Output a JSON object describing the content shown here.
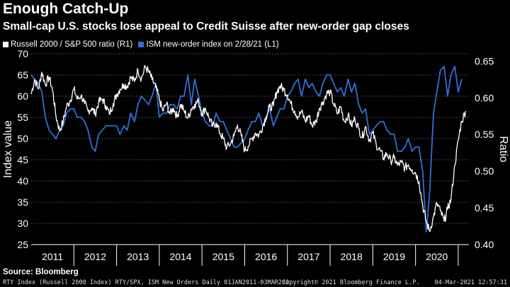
{
  "title": "Enough Catch-Up",
  "subtitle": "Small-cap U.S. stocks lose appeal to Credit Suisse after new-order gap closes",
  "source": "Source: Bloomberg",
  "footer": {
    "left": "RTY Index (Russell 2000 Index) RTY/SPX, ISM New Orders  Daily 01JAN2011-03MAR202",
    "center": "Copyright© 2021 Bloomberg Finance L.P.",
    "right": "04-Mar-2021 12:57:31"
  },
  "colors": {
    "russell": "#ffffff",
    "ism": "#2f6fd6",
    "grid": "#7a7a7a",
    "background": "#000000"
  },
  "chart_data": {
    "type": "line",
    "x_categories": [
      "2011",
      "2012",
      "2013",
      "2014",
      "2015",
      "2016",
      "2017",
      "2018",
      "2019",
      "2020"
    ],
    "left_axis": {
      "label": "Index value",
      "range": [
        25,
        70
      ],
      "ticks": [
        25,
        30,
        35,
        40,
        45,
        50,
        55,
        60,
        65,
        70
      ]
    },
    "right_axis": {
      "label": "Ratio",
      "range": [
        0.4,
        0.66
      ],
      "ticks": [
        "0.40",
        "0.45",
        "0.50",
        "0.55",
        "0.60",
        "0.65"
      ]
    },
    "series": [
      {
        "name": "Russell 2000 / S&P 500 ratio (R1)",
        "axis": "right",
        "x": [
          2011.0,
          2011.08,
          2011.17,
          2011.25,
          2011.33,
          2011.42,
          2011.5,
          2011.58,
          2011.67,
          2011.75,
          2011.83,
          2011.92,
          2012.0,
          2012.08,
          2012.17,
          2012.25,
          2012.33,
          2012.42,
          2012.5,
          2012.58,
          2012.67,
          2012.75,
          2012.83,
          2012.92,
          2013.0,
          2013.08,
          2013.17,
          2013.25,
          2013.33,
          2013.42,
          2013.5,
          2013.58,
          2013.67,
          2013.75,
          2013.83,
          2013.92,
          2014.0,
          2014.08,
          2014.17,
          2014.25,
          2014.33,
          2014.42,
          2014.5,
          2014.58,
          2014.67,
          2014.75,
          2014.83,
          2014.92,
          2015.0,
          2015.08,
          2015.17,
          2015.25,
          2015.33,
          2015.42,
          2015.5,
          2015.58,
          2015.67,
          2015.75,
          2015.83,
          2015.92,
          2016.0,
          2016.08,
          2016.17,
          2016.25,
          2016.33,
          2016.42,
          2016.5,
          2016.58,
          2016.67,
          2016.75,
          2016.83,
          2016.92,
          2017.0,
          2017.08,
          2017.17,
          2017.25,
          2017.33,
          2017.42,
          2017.5,
          2017.58,
          2017.67,
          2017.75,
          2017.83,
          2017.92,
          2018.0,
          2018.08,
          2018.17,
          2018.25,
          2018.33,
          2018.42,
          2018.5,
          2018.58,
          2018.67,
          2018.75,
          2018.83,
          2018.92,
          2019.0,
          2019.08,
          2019.17,
          2019.25,
          2019.33,
          2019.42,
          2019.5,
          2019.58,
          2019.67,
          2019.75,
          2019.83,
          2019.92,
          2020.0,
          2020.08,
          2020.17,
          2020.25,
          2020.33,
          2020.42,
          2020.5,
          2020.58,
          2020.67,
          2020.75,
          2020.83,
          2020.92,
          2021.0,
          2021.08,
          2021.17
        ],
        "values": [
          0.605,
          0.625,
          0.612,
          0.635,
          0.618,
          0.628,
          0.611,
          0.575,
          0.555,
          0.568,
          0.588,
          0.597,
          0.612,
          0.598,
          0.603,
          0.592,
          0.582,
          0.586,
          0.578,
          0.594,
          0.598,
          0.589,
          0.578,
          0.592,
          0.604,
          0.612,
          0.618,
          0.616,
          0.628,
          0.622,
          0.638,
          0.626,
          0.642,
          0.636,
          0.625,
          0.614,
          0.598,
          0.582,
          0.592,
          0.578,
          0.586,
          0.574,
          0.591,
          0.582,
          0.572,
          0.585,
          0.591,
          0.595,
          0.578,
          0.586,
          0.572,
          0.561,
          0.566,
          0.552,
          0.544,
          0.532,
          0.538,
          0.548,
          0.563,
          0.548,
          0.528,
          0.534,
          0.544,
          0.552,
          0.549,
          0.561,
          0.574,
          0.587,
          0.589,
          0.608,
          0.616,
          0.611,
          0.604,
          0.592,
          0.582,
          0.574,
          0.581,
          0.568,
          0.576,
          0.562,
          0.568,
          0.586,
          0.594,
          0.606,
          0.608,
          0.592,
          0.578,
          0.588,
          0.568,
          0.576,
          0.562,
          0.572,
          0.558,
          0.546,
          0.561,
          0.542,
          0.552,
          0.536,
          0.528,
          0.518,
          0.524,
          0.514,
          0.518,
          0.508,
          0.512,
          0.504,
          0.509,
          0.502,
          0.498,
          0.486,
          0.452,
          0.432,
          0.418,
          0.438,
          0.456,
          0.446,
          0.432,
          0.448,
          0.462,
          0.508,
          0.542,
          0.568,
          0.582
        ]
      },
      {
        "name": "ISM new-order index on 2/28/21 (L1)",
        "axis": "left",
        "x": [
          2011.0,
          2011.08,
          2011.17,
          2011.25,
          2011.33,
          2011.42,
          2011.5,
          2011.58,
          2011.67,
          2011.75,
          2011.83,
          2011.92,
          2012.0,
          2012.08,
          2012.17,
          2012.25,
          2012.33,
          2012.42,
          2012.5,
          2012.58,
          2012.67,
          2012.75,
          2012.83,
          2012.92,
          2013.0,
          2013.08,
          2013.17,
          2013.25,
          2013.33,
          2013.42,
          2013.5,
          2013.58,
          2013.67,
          2013.75,
          2013.83,
          2013.92,
          2014.0,
          2014.08,
          2014.17,
          2014.25,
          2014.33,
          2014.42,
          2014.5,
          2014.58,
          2014.67,
          2014.75,
          2014.83,
          2014.92,
          2015.0,
          2015.08,
          2015.17,
          2015.25,
          2015.33,
          2015.42,
          2015.5,
          2015.58,
          2015.67,
          2015.75,
          2015.83,
          2015.92,
          2016.0,
          2016.08,
          2016.17,
          2016.25,
          2016.33,
          2016.42,
          2016.5,
          2016.58,
          2016.67,
          2016.75,
          2016.83,
          2016.92,
          2017.0,
          2017.08,
          2017.17,
          2017.25,
          2017.33,
          2017.42,
          2017.5,
          2017.58,
          2017.67,
          2017.75,
          2017.83,
          2017.92,
          2018.0,
          2018.08,
          2018.17,
          2018.25,
          2018.33,
          2018.42,
          2018.5,
          2018.58,
          2018.67,
          2018.75,
          2018.83,
          2018.92,
          2019.0,
          2019.08,
          2019.17,
          2019.25,
          2019.33,
          2019.42,
          2019.5,
          2019.58,
          2019.67,
          2019.75,
          2019.83,
          2019.92,
          2020.0,
          2020.08,
          2020.17,
          2020.25,
          2020.33,
          2020.42,
          2020.5,
          2020.58,
          2020.67,
          2020.75,
          2020.83,
          2020.92,
          2021.0,
          2021.08
        ],
        "values": [
          65,
          64,
          63,
          61,
          55,
          52,
          51,
          50,
          52,
          53,
          56,
          57,
          57,
          55,
          55,
          54,
          52,
          48,
          47,
          51,
          52,
          53,
          53,
          53,
          53,
          51,
          53,
          52,
          56,
          54,
          58,
          60,
          59,
          58,
          60,
          63,
          55,
          56,
          56,
          58,
          58,
          57,
          60,
          60,
          65,
          58,
          64,
          60,
          56,
          54,
          53,
          53,
          56,
          54,
          54,
          52,
          50,
          48,
          48,
          49,
          50,
          52,
          54,
          54,
          56,
          53,
          55,
          57,
          53,
          55,
          57,
          57,
          60,
          61,
          63,
          64,
          60,
          64,
          62,
          63,
          61,
          60,
          63,
          65,
          65,
          63,
          61,
          62,
          60,
          64,
          61,
          63,
          58,
          56,
          57,
          51,
          52,
          53,
          54,
          54,
          52,
          51,
          51,
          47,
          47,
          48,
          50,
          47,
          48,
          48,
          42,
          28,
          37,
          56,
          61,
          66,
          67,
          60,
          65,
          67,
          61,
          64
        ]
      }
    ]
  }
}
